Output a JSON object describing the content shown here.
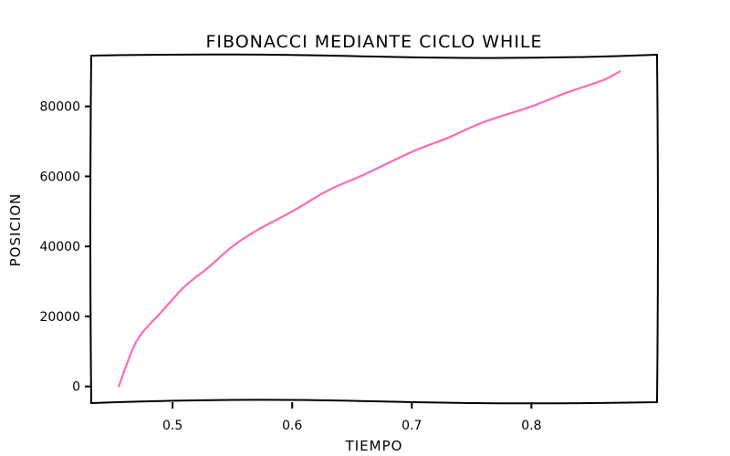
{
  "chart_data": {
    "type": "line",
    "title": "FIBONACCI MEDIANTE CICLO WHILE",
    "xlabel": "TIEMPO",
    "ylabel": "POSICION",
    "xlim": [
      0.432,
      0.905
    ],
    "ylim": [
      -4500,
      94500
    ],
    "xticks": [
      0.5,
      0.6,
      0.7,
      0.8
    ],
    "xtick_labels": [
      "0.5",
      "0.6",
      "0.7",
      "0.8"
    ],
    "yticks": [
      0,
      20000,
      40000,
      60000,
      80000
    ],
    "ytick_labels": [
      "0",
      "20000",
      "40000",
      "60000",
      "80000"
    ],
    "grid": false,
    "colors": {
      "line": "#ff69b4",
      "axes": "#000000"
    },
    "series": [
      {
        "x": [
          0.455,
          0.47,
          0.49,
          0.51,
          0.53,
          0.55,
          0.57,
          0.6,
          0.63,
          0.66,
          0.7,
          0.73,
          0.76,
          0.8,
          0.83,
          0.86,
          0.874
        ],
        "y": [
          0,
          13000,
          21000,
          28500,
          34000,
          40000,
          44500,
          50000,
          56000,
          60500,
          67000,
          71000,
          75500,
          80000,
          84000,
          87500,
          90000
        ]
      }
    ]
  }
}
